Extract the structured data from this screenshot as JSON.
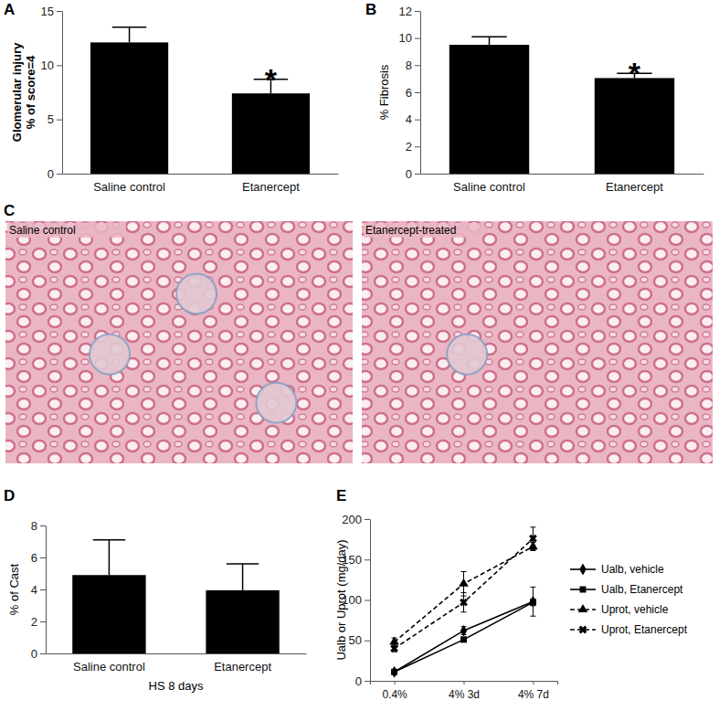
{
  "chart_data": [
    {
      "type": "bar",
      "panel": "A",
      "ylabel": [
        "Glomerular injury",
        "% of score=4"
      ],
      "categories": [
        "Saline control",
        "Etanercept"
      ],
      "values": [
        12.1,
        7.4
      ],
      "errors": [
        1.4,
        1.3
      ],
      "color": "#000000",
      "ylim": [
        0,
        15
      ],
      "yticks": [
        0,
        5,
        10,
        15
      ],
      "annotations": [
        {
          "text": "*",
          "x": "Etanercept"
        }
      ]
    },
    {
      "type": "bar",
      "panel": "B",
      "ylabel": "% Fibrosis",
      "categories": [
        "Saline control",
        "Etanercept"
      ],
      "values": [
        9.5,
        7.05
      ],
      "errors": [
        0.6,
        0.35
      ],
      "color": "#000000",
      "ylim": [
        0,
        12
      ],
      "yticks": [
        0,
        2,
        4,
        6,
        8,
        10,
        12
      ],
      "annotations": [
        {
          "text": "*",
          "x": "Etanercept"
        }
      ]
    },
    {
      "type": "image",
      "panel": "C",
      "categories": [
        "Saline control",
        "Etanercept-treated"
      ]
    },
    {
      "type": "bar",
      "panel": "D",
      "ylabel": "% of Cast",
      "xlabel": "HS 8 days",
      "categories": [
        "Saline control",
        "Etanercept"
      ],
      "values": [
        4.9,
        3.95
      ],
      "errors": [
        2.2,
        1.65
      ],
      "color": "#000000",
      "ylim": [
        0,
        8
      ],
      "yticks": [
        0,
        2,
        4,
        6,
        8
      ]
    },
    {
      "type": "line",
      "panel": "E",
      "ylabel": "Ualb or Uprot (mg/day)",
      "categories": [
        "0.4%",
        "4% 3d",
        "4% 7d"
      ],
      "ylim": [
        0,
        200
      ],
      "yticks": [
        0,
        50,
        100,
        150,
        200
      ],
      "legend": "right",
      "series": [
        {
          "name": "Ualb, vehicle",
          "color": "#000000",
          "marker": "diamond",
          "line_style": "solid",
          "values": [
            11,
            62,
            98
          ],
          "errors": [
            1,
            5,
            18
          ]
        },
        {
          "name": "Ualb, Etanercept",
          "color": "#000000",
          "marker": "square",
          "line_style": "solid",
          "values": [
            11,
            51,
            97
          ],
          "errors": [
            1,
            3,
            4
          ]
        },
        {
          "name": "Uprot, vehicle",
          "color": "#000000",
          "marker": "triangle",
          "line_style": "dashed",
          "values": [
            48,
            120,
            166
          ],
          "errors": [
            5,
            15,
            5
          ]
        },
        {
          "name": "Uprot, Etanercept",
          "color": "#000000",
          "marker": "x",
          "line_style": "dashed",
          "values": [
            40,
            97,
            176
          ],
          "errors": [
            4,
            12,
            14
          ]
        }
      ]
    }
  ]
}
